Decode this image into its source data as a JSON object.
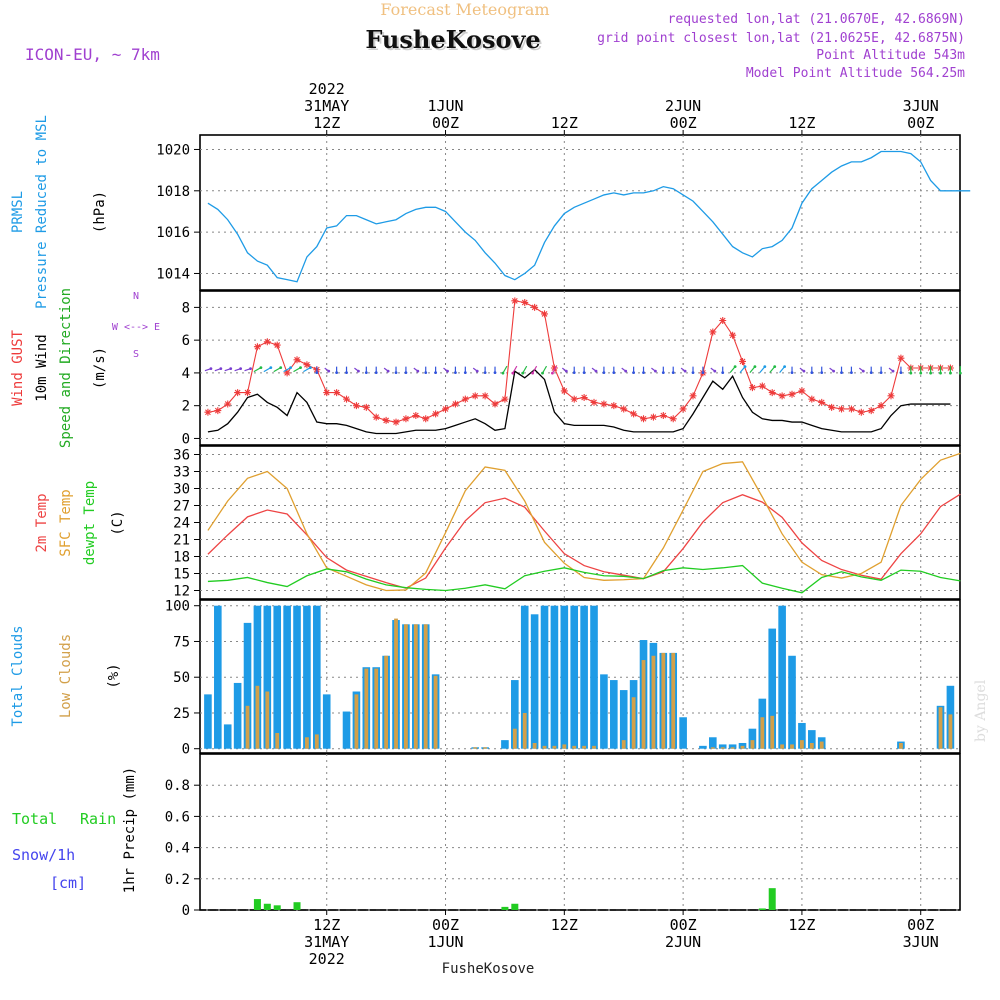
{
  "header": {
    "subtitle": "Forecast Meteogram",
    "title": "FusheKosove",
    "model": "ICON-EU, ~ 7km",
    "requested": "requested lon,lat (21.0670E, 42.6869N)",
    "closest": "grid point closest lon,lat (21.0625E, 42.6875N)",
    "altitude": "Point Altitude 543m",
    "model_altitude": "Model Point Altitude 564.25m",
    "footer_title": "FusheKosove",
    "credit": "by Angel"
  },
  "colors": {
    "pressure": "#1e9be6",
    "gust": "#ee3b3b",
    "wind": "#000000",
    "direction": "#22aa22",
    "temp": "#ee4444",
    "sfc": "#e0a030",
    "dewpt": "#22cc22",
    "total_clouds": "#1e9be6",
    "low_clouds": "#d2a04a",
    "rain": "#22cc22",
    "snow": "#4444ee",
    "purple": "#a040d0",
    "orange_title": "#f0c080"
  },
  "time_axis": {
    "top": [
      {
        "h": 12,
        "lines": [
          "2022",
          "31MAY",
          "12Z"
        ]
      },
      {
        "h": 24,
        "lines": [
          "1JUN",
          "00Z"
        ]
      },
      {
        "h": 36,
        "lines": [
          "12Z"
        ]
      },
      {
        "h": 48,
        "lines": [
          "2JUN",
          "00Z"
        ]
      },
      {
        "h": 60,
        "lines": [
          "12Z"
        ]
      },
      {
        "h": 72,
        "lines": [
          "3JUN",
          "00Z"
        ]
      }
    ],
    "bottom": [
      {
        "h": 12,
        "lines": [
          "12Z",
          "31MAY",
          "2022"
        ]
      },
      {
        "h": 24,
        "lines": [
          "00Z",
          "1JUN"
        ]
      },
      {
        "h": 36,
        "lines": [
          "12Z"
        ]
      },
      {
        "h": 48,
        "lines": [
          "00Z",
          "2JUN"
        ]
      },
      {
        "h": 60,
        "lines": [
          "12Z"
        ]
      },
      {
        "h": 72,
        "lines": [
          "00Z",
          "3JUN"
        ]
      }
    ]
  },
  "panel_labels": {
    "pressure": {
      "line1": "PRMSL",
      "line2": "Pressure Reduced to MSL",
      "unit": "(hPa)"
    },
    "wind": {
      "gust": "Wind GUST",
      "wind": "10m Wind",
      "dir": "Speed and Direction",
      "unit": "(m/s)",
      "compass_n": "N",
      "compass_ew": "W <--> E",
      "compass_s": "S"
    },
    "temp": {
      "t2m": "2m Temp",
      "sfc": "SFC Temp",
      "dew": "dewpt Temp",
      "unit": "(C)"
    },
    "clouds": {
      "total": "Total Clouds",
      "low": "Low Clouds",
      "unit": "(%)"
    },
    "precip": {
      "ylabel": "1hr Precip (mm)",
      "rain_a": "Total",
      "rain_b": "Rain",
      "snow": "Snow/1h",
      "snow_unit": "[cm]"
    }
  },
  "chart_data": [
    {
      "type": "line",
      "name": "pressure",
      "ylabel": "PRMSL Pressure Reduced to MSL (hPa)",
      "ylim": [
        1013.2,
        1020.7
      ],
      "yticks": [
        1014,
        1016,
        1018,
        1020
      ],
      "x_hours": [
        0,
        1,
        2,
        3,
        4,
        5,
        6,
        7,
        8,
        9,
        10,
        11,
        12,
        13,
        14,
        15,
        16,
        17,
        18,
        19,
        20,
        21,
        22,
        23,
        24,
        25,
        26,
        27,
        28,
        29,
        30,
        31,
        32,
        33,
        34,
        35,
        36,
        37,
        38,
        39,
        40,
        41,
        42,
        43,
        44,
        45,
        46,
        47,
        48,
        49,
        50,
        51,
        52,
        53,
        54,
        55,
        56,
        57,
        58,
        59,
        60,
        61,
        62,
        63,
        64,
        65,
        66,
        67,
        68,
        69,
        70,
        71,
        72,
        73,
        74,
        75,
        76,
        77
      ],
      "values": [
        1017.4,
        1017.1,
        1016.6,
        1015.9,
        1015.0,
        1014.6,
        1014.4,
        1013.8,
        1013.7,
        1013.6,
        1014.8,
        1015.3,
        1016.2,
        1016.3,
        1016.8,
        1016.8,
        1016.6,
        1016.4,
        1016.5,
        1016.6,
        1016.9,
        1017.1,
        1017.2,
        1017.2,
        1017.0,
        1016.5,
        1016.0,
        1015.6,
        1015.0,
        1014.5,
        1013.9,
        1013.7,
        1014.0,
        1014.4,
        1015.5,
        1016.3,
        1016.9,
        1017.2,
        1017.4,
        1017.6,
        1017.8,
        1017.9,
        1017.8,
        1017.9,
        1017.9,
        1018.0,
        1018.2,
        1018.1,
        1017.8,
        1017.5,
        1017.0,
        1016.5,
        1015.9,
        1015.3,
        1015.0,
        1014.8,
        1015.2,
        1015.3,
        1015.6,
        1016.2,
        1017.4,
        1018.1,
        1018.5,
        1018.9,
        1019.2,
        1019.4,
        1019.4,
        1019.6,
        1019.9,
        1019.9,
        1019.9,
        1019.8,
        1019.4,
        1018.5,
        1018.0,
        1018.0,
        1018.0,
        1018.0
      ]
    },
    {
      "type": "line",
      "name": "wind",
      "ylabel": "Wind GUST / 10m Wind Speed and Direction (m/s)",
      "ylim": [
        -0.4,
        9.0
      ],
      "yticks": [
        0,
        2,
        4,
        6,
        8
      ],
      "x_hours": [
        0,
        1,
        2,
        3,
        4,
        5,
        6,
        7,
        8,
        9,
        10,
        11,
        12,
        13,
        14,
        15,
        16,
        17,
        18,
        19,
        20,
        21,
        22,
        23,
        24,
        25,
        26,
        27,
        28,
        29,
        30,
        31,
        32,
        33,
        34,
        35,
        36,
        37,
        38,
        39,
        40,
        41,
        42,
        43,
        44,
        45,
        46,
        47,
        48,
        49,
        50,
        51,
        52,
        53,
        54,
        55,
        56,
        57,
        58,
        59,
        60,
        61,
        62,
        63,
        64,
        65,
        66,
        67,
        68,
        69,
        70,
        71,
        72,
        73,
        74,
        75
      ],
      "series": [
        {
          "name": "Wind GUST",
          "values": [
            1.6,
            1.7,
            2.1,
            2.8,
            2.8,
            5.6,
            5.9,
            5.7,
            4.0,
            4.8,
            4.5,
            4.2,
            2.8,
            2.8,
            2.4,
            2.0,
            1.9,
            1.3,
            1.1,
            1.0,
            1.2,
            1.4,
            1.2,
            1.5,
            1.8,
            2.1,
            2.4,
            2.6,
            2.6,
            2.1,
            2.4,
            8.4,
            8.3,
            8.0,
            7.6,
            4.3,
            2.9,
            2.4,
            2.5,
            2.2,
            2.1,
            2.0,
            1.8,
            1.5,
            1.2,
            1.3,
            1.4,
            1.2,
            1.8,
            2.6,
            4.0,
            6.5,
            7.2,
            6.3,
            4.7,
            3.1,
            3.2,
            2.8,
            2.6,
            2.7,
            2.9,
            2.4,
            2.2,
            1.9,
            1.8,
            1.8,
            1.6,
            1.7,
            2.0,
            2.6,
            4.9,
            4.3,
            4.3,
            4.3,
            4.3,
            4.3
          ]
        },
        {
          "name": "10m Wind",
          "values": [
            0.4,
            0.5,
            0.9,
            1.6,
            2.5,
            2.7,
            2.2,
            1.9,
            1.4,
            2.8,
            2.2,
            1.0,
            0.9,
            0.9,
            0.8,
            0.6,
            0.4,
            0.3,
            0.3,
            0.3,
            0.4,
            0.5,
            0.5,
            0.5,
            0.6,
            0.8,
            1.0,
            1.2,
            0.9,
            0.5,
            0.6,
            4.1,
            3.7,
            4.2,
            3.6,
            1.6,
            0.9,
            0.8,
            0.8,
            0.8,
            0.8,
            0.7,
            0.5,
            0.4,
            0.4,
            0.4,
            0.4,
            0.4,
            0.6,
            1.5,
            2.5,
            3.5,
            3.0,
            3.8,
            2.5,
            1.6,
            1.2,
            1.1,
            1.1,
            1.0,
            1.0,
            0.8,
            0.6,
            0.5,
            0.4,
            0.4,
            0.4,
            0.4,
            0.6,
            1.4,
            2.0,
            2.1,
            2.1,
            2.1,
            2.1,
            2.1
          ]
        }
      ]
    },
    {
      "type": "line",
      "name": "temperature",
      "ylabel": "2m Temp / SFC Temp / dewpt Temp (C)",
      "ylim": [
        10.5,
        37.5
      ],
      "yticks": [
        12,
        15,
        18,
        21,
        24,
        27,
        30,
        33,
        36
      ],
      "x_hours": [
        0,
        2,
        4,
        6,
        8,
        10,
        12,
        14,
        16,
        18,
        20,
        22,
        24,
        26,
        28,
        30,
        32,
        34,
        36,
        38,
        40,
        42,
        44,
        46,
        48,
        50,
        52,
        54,
        56,
        58,
        60,
        62,
        64,
        66,
        68,
        70,
        72,
        74,
        76
      ],
      "series": [
        {
          "name": "2m Temp",
          "values": [
            18.4,
            21.8,
            25.0,
            26.2,
            25.5,
            21.8,
            17.8,
            15.6,
            14.5,
            13.4,
            12.4,
            14.2,
            19.5,
            24.3,
            27.5,
            28.3,
            26.7,
            22.5,
            18.5,
            16.4,
            15.3,
            14.7,
            14.1,
            15.3,
            19.4,
            24.1,
            27.5,
            28.9,
            27.6,
            24.9,
            20.4,
            17.3,
            15.7,
            14.7,
            14.0,
            18.5,
            22.0,
            26.8,
            29.0
          ]
        },
        {
          "name": "SFC Temp",
          "values": [
            22.6,
            27.8,
            31.8,
            33.0,
            30.0,
            22.0,
            16.0,
            14.5,
            13.0,
            12.0,
            12.1,
            15.1,
            22.2,
            29.6,
            33.8,
            33.2,
            27.8,
            20.5,
            16.8,
            14.3,
            13.8,
            13.9,
            14.1,
            19.5,
            26.2,
            33.0,
            34.4,
            34.7,
            28.5,
            22.0,
            17.0,
            14.8,
            14.2,
            15.0,
            17.0,
            27.0,
            31.6,
            35.0,
            36.2
          ]
        },
        {
          "name": "dewpt Temp",
          "values": [
            13.6,
            13.8,
            14.3,
            13.4,
            12.7,
            14.6,
            15.8,
            15.3,
            14.0,
            13.0,
            12.5,
            12.2,
            12.0,
            12.4,
            13.0,
            12.3,
            14.6,
            15.4,
            16.0,
            15.2,
            14.6,
            14.5,
            14.1,
            15.5,
            16.0,
            15.7,
            16.0,
            16.4,
            13.3,
            12.4,
            11.6,
            14.3,
            15.3,
            14.4,
            13.8,
            15.6,
            15.4,
            14.3,
            13.7
          ]
        }
      ]
    },
    {
      "type": "bar",
      "name": "clouds",
      "ylabel": "Total Clouds / Low Clouds (%)",
      "ylim": [
        -3,
        104
      ],
      "yticks": [
        0,
        25,
        50,
        75,
        100
      ],
      "x_hours": [
        0,
        1,
        2,
        3,
        4,
        5,
        6,
        7,
        8,
        9,
        10,
        11,
        12,
        13,
        14,
        15,
        16,
        17,
        18,
        19,
        20,
        21,
        22,
        23,
        24,
        25,
        26,
        27,
        28,
        29,
        30,
        31,
        32,
        33,
        34,
        35,
        36,
        37,
        38,
        39,
        40,
        41,
        42,
        43,
        44,
        45,
        46,
        47,
        48,
        49,
        50,
        51,
        52,
        53,
        54,
        55,
        56,
        57,
        58,
        59,
        60,
        61,
        62,
        63,
        64,
        65,
        66,
        67,
        68,
        69,
        70,
        71,
        72,
        73,
        74,
        75
      ],
      "series": [
        {
          "name": "Total Clouds",
          "values": [
            38,
            100,
            17,
            46,
            88,
            100,
            100,
            100,
            100,
            100,
            100,
            100,
            38,
            0,
            26,
            40,
            57,
            57,
            65,
            90,
            87,
            87,
            87,
            52,
            0,
            0,
            0,
            1,
            1,
            0,
            6,
            48,
            100,
            94,
            100,
            100,
            100,
            100,
            100,
            100,
            52,
            48,
            41,
            48,
            76,
            74,
            67,
            67,
            22,
            0,
            2,
            8,
            3,
            3,
            4,
            14,
            35,
            84,
            100,
            65,
            18,
            13,
            8,
            0,
            0,
            0,
            0,
            0,
            0,
            0,
            5,
            0,
            0,
            0,
            30,
            44
          ]
        },
        {
          "name": "Low Clouds",
          "values": [
            0,
            0,
            0,
            0,
            30,
            44,
            40,
            11,
            0,
            0,
            8,
            10,
            0,
            0,
            0,
            38,
            56,
            56,
            65,
            91,
            87,
            87,
            87,
            51,
            0,
            0,
            0,
            1,
            1,
            0,
            0,
            14,
            25,
            4,
            2,
            2,
            3,
            2,
            2,
            2,
            0,
            0,
            6,
            36,
            62,
            65,
            67,
            67,
            0,
            0,
            0,
            1,
            1,
            1,
            2,
            6,
            22,
            23,
            3,
            3,
            6,
            4,
            5,
            0,
            0,
            0,
            0,
            0,
            0,
            0,
            4,
            0,
            0,
            0,
            29,
            24
          ]
        }
      ]
    },
    {
      "type": "bar",
      "name": "precipitation",
      "ylabel": "1hr Precip (mm)",
      "ylim": [
        0,
        1.0
      ],
      "yticks": [
        0,
        0.2,
        0.4,
        0.6,
        0.8
      ],
      "x_hours": [
        5,
        6,
        7,
        9,
        30,
        31,
        56,
        57
      ],
      "series": [
        {
          "name": "Total Rain",
          "values": [
            0.07,
            0.04,
            0.03,
            0.05,
            0.02,
            0.04,
            0.01,
            0.14
          ]
        }
      ]
    }
  ]
}
